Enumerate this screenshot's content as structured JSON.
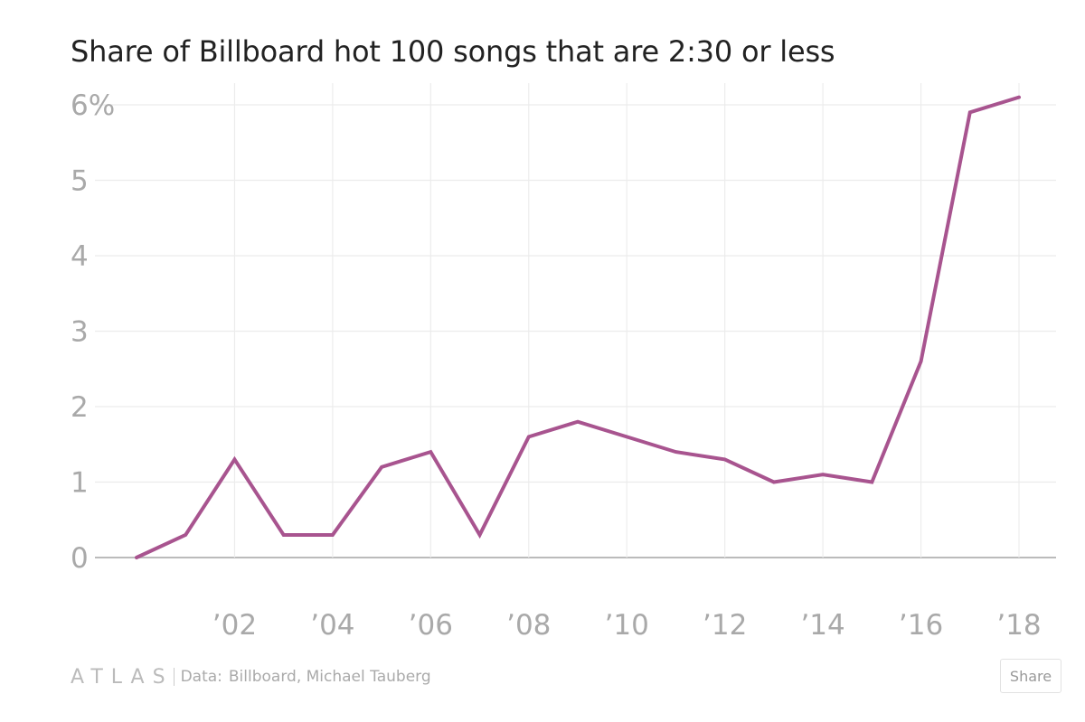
{
  "chart_data": {
    "type": "line",
    "title": "Share of Billboard hot 100 songs that are 2:30 or less",
    "xlabel": "",
    "ylabel": "",
    "x": [
      2000,
      2001,
      2002,
      2003,
      2004,
      2005,
      2006,
      2007,
      2008,
      2009,
      2010,
      2011,
      2012,
      2013,
      2014,
      2015,
      2016,
      2017,
      2018
    ],
    "series": [
      {
        "values": [
          0.0,
          0.3,
          1.3,
          0.3,
          0.3,
          1.2,
          1.4,
          0.3,
          1.6,
          1.8,
          1.6,
          1.4,
          1.3,
          1.0,
          1.1,
          1.0,
          2.6,
          5.9,
          6.1
        ],
        "color": "#a8548f"
      }
    ],
    "xlim": [
      2000,
      2018
    ],
    "ylim": [
      0,
      6
    ],
    "x_ticks": [
      {
        "value": 2002,
        "label": "’02"
      },
      {
        "value": 2004,
        "label": "’04"
      },
      {
        "value": 2006,
        "label": "’06"
      },
      {
        "value": 2008,
        "label": "’08"
      },
      {
        "value": 2010,
        "label": "’10"
      },
      {
        "value": 2012,
        "label": "’12"
      },
      {
        "value": 2014,
        "label": "’14"
      },
      {
        "value": 2016,
        "label": "’16"
      },
      {
        "value": 2018,
        "label": "’18"
      }
    ],
    "y_ticks": [
      {
        "value": 0,
        "label": "0"
      },
      {
        "value": 1,
        "label": "1"
      },
      {
        "value": 2,
        "label": "2"
      },
      {
        "value": 3,
        "label": "3"
      },
      {
        "value": 4,
        "label": "4"
      },
      {
        "value": 5,
        "label": "5"
      },
      {
        "value": 6,
        "label": "6%"
      }
    ],
    "grid": true,
    "legend": "none"
  },
  "footer": {
    "logo_text": "ATLAS",
    "source_label": "Data:",
    "source_value": "Billboard, Michael Tauberg",
    "share_label": "Share"
  },
  "colors": {
    "line": "#a8548f",
    "grid": "#ececec",
    "baseline": "#bbbbbb",
    "tick_label": "#a9a9a9"
  }
}
